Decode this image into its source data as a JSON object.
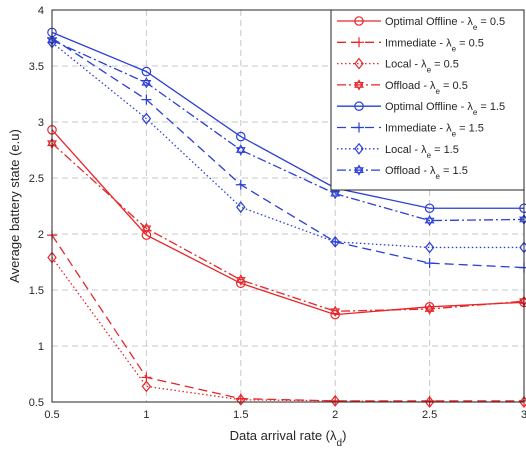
{
  "chart_data": {
    "type": "line",
    "title": "",
    "xlabel": "Data arrival rate (λ",
    "xlabel_sub": "d",
    "xlabel_close": ")",
    "ylabel": "Average battery state (e.u)",
    "x": [
      0.5,
      1,
      1.5,
      2,
      2.5,
      3
    ],
    "xticks": [
      "0.5",
      "1",
      "1.5",
      "2",
      "2.5",
      "3"
    ],
    "yticks": [
      "0.5",
      "1",
      "1.5",
      "2",
      "2.5",
      "3",
      "3.5",
      "4"
    ],
    "xlim": [
      0.5,
      3
    ],
    "ylim": [
      0.5,
      4
    ],
    "grid": true,
    "legend_position": "top-right",
    "series": [
      {
        "name": "Optimal Offline - λe = 0.5",
        "label_main": "Optimal Offline - λ",
        "label_sub": "e",
        "label_tail": " = 0.5",
        "color": "#e8262a",
        "dash": "solid",
        "marker": "circle",
        "values": [
          2.93,
          1.99,
          1.56,
          1.28,
          1.35,
          1.39
        ]
      },
      {
        "name": "Immediate - λe = 0.5",
        "label_main": "Immediate - λ",
        "label_sub": "e",
        "label_tail": " = 0.5",
        "color": "#e8262a",
        "dash": "dashed",
        "marker": "plus",
        "values": [
          1.99,
          0.72,
          0.53,
          0.51,
          0.51,
          0.51
        ]
      },
      {
        "name": "Local - λe = 0.5",
        "label_main": "Local - λ",
        "label_sub": "e",
        "label_tail": " = 0.5",
        "color": "#e8262a",
        "dash": "dotted",
        "marker": "diamond",
        "values": [
          1.79,
          0.64,
          0.52,
          0.51,
          0.5,
          0.5
        ]
      },
      {
        "name": "Offload - λe = 0.5",
        "label_main": "Offload - λ",
        "label_sub": "e",
        "label_tail": " = 0.5",
        "color": "#e8262a",
        "dash": "dashdot",
        "marker": "hexagram",
        "values": [
          2.81,
          2.05,
          1.59,
          1.31,
          1.33,
          1.4
        ]
      },
      {
        "name": "Optimal Offline - λe = 1.5",
        "label_main": "Optimal Offline - λ",
        "label_sub": "e",
        "label_tail": " = 1.5",
        "color": "#2a3fd6",
        "dash": "solid",
        "marker": "circle",
        "values": [
          3.8,
          3.45,
          2.87,
          2.41,
          2.23,
          2.23
        ]
      },
      {
        "name": "Immediate - λe = 1.5",
        "label_main": "Immediate - λ",
        "label_sub": "e",
        "label_tail": " = 1.5",
        "color": "#2a3fd6",
        "dash": "dashed",
        "marker": "plus",
        "values": [
          3.75,
          3.2,
          2.44,
          1.93,
          1.74,
          1.7
        ]
      },
      {
        "name": "Local - λe = 1.5",
        "label_main": "Local - λ",
        "label_sub": "e",
        "label_tail": " = 1.5",
        "color": "#2a3fd6",
        "dash": "dotted",
        "marker": "diamond",
        "values": [
          3.71,
          3.03,
          2.24,
          1.93,
          1.88,
          1.88
        ]
      },
      {
        "name": "Offload - λe = 1.5",
        "label_main": "Offload - λ",
        "label_sub": "e",
        "label_tail": " = 1.5",
        "color": "#2a3fd6",
        "dash": "dashdot",
        "marker": "hexagram",
        "values": [
          3.73,
          3.35,
          2.75,
          2.36,
          2.12,
          2.13
        ]
      }
    ]
  }
}
